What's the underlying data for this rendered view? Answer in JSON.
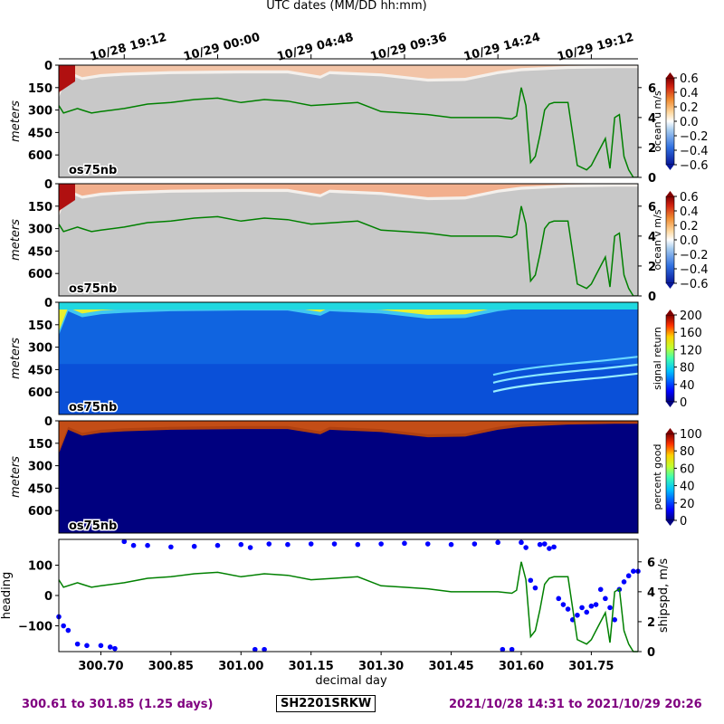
{
  "chart_data": {
    "type": "heatmap",
    "top_axis": {
      "label": "UTC dates (MM/DD hh:mm)",
      "ticks": [
        {
          "x": 300.75,
          "label": "10/28 19:12"
        },
        {
          "x": 300.95,
          "label": "10/29 00:00"
        },
        {
          "x": 301.15,
          "label": "10/29 04:48"
        },
        {
          "x": 301.35,
          "label": "10/29 09:36"
        },
        {
          "x": 301.55,
          "label": "10/29 14:24"
        },
        {
          "x": 301.75,
          "label": "10/29 19:12"
        }
      ]
    },
    "x_axis": {
      "label": "decimal day",
      "range": [
        300.61,
        301.85
      ],
      "ticks": [
        "300.70",
        "300.85",
        "301.00",
        "301.15",
        "301.30",
        "301.45",
        "301.60",
        "301.75"
      ]
    },
    "depth_axis": {
      "label": "meters",
      "range": [
        0,
        750
      ],
      "ticks": [
        "0",
        "150",
        "300",
        "450",
        "600"
      ]
    },
    "panel_tag": "os75nb",
    "panels": [
      {
        "name": "ocean u",
        "colorbar_label": "ocean u m/s",
        "colorbar_ticks": [
          "0.6",
          "0.4",
          "0.2",
          "0.0",
          "−0.2",
          "−0.4",
          "−0.6"
        ],
        "colormap": "blue-white-red",
        "overlay": "shipspd"
      },
      {
        "name": "ocean v",
        "colorbar_label": "ocean v m/s",
        "colorbar_ticks": [
          "0.6",
          "0.4",
          "0.2",
          "0.0",
          "−0.2",
          "−0.4",
          "−0.6"
        ],
        "colormap": "blue-white-red",
        "overlay": "shipspd"
      },
      {
        "name": "signal return",
        "colorbar_label": "signal return",
        "colorbar_ticks": [
          "200",
          "160",
          "120",
          "80",
          "40",
          "0"
        ],
        "colormap": "jet"
      },
      {
        "name": "percent good",
        "colorbar_label": "percent good",
        "colorbar_ticks": [
          "100",
          "80",
          "60",
          "40",
          "20",
          "0"
        ],
        "colormap": "jet"
      }
    ],
    "speed_axis_ticks": [
      "6",
      "4",
      "2",
      "0"
    ],
    "profile_depth_m": [
      [
        300.61,
        220
      ],
      [
        300.63,
        60
      ],
      [
        300.66,
        100
      ],
      [
        300.7,
        80
      ],
      [
        300.75,
        70
      ],
      [
        300.85,
        60
      ],
      [
        301.0,
        55
      ],
      [
        301.1,
        55
      ],
      [
        301.17,
        90
      ],
      [
        301.19,
        60
      ],
      [
        301.3,
        75
      ],
      [
        301.4,
        110
      ],
      [
        301.48,
        105
      ],
      [
        301.55,
        60
      ],
      [
        301.6,
        40
      ],
      [
        301.7,
        25
      ],
      [
        301.8,
        20
      ],
      [
        301.85,
        20
      ]
    ],
    "shipspd": {
      "ylabel": "shipspd, m/s",
      "ylim": [
        0,
        7.5
      ],
      "x": [
        300.61,
        300.62,
        300.65,
        300.66,
        300.68,
        300.7,
        300.75,
        300.8,
        300.85,
        300.9,
        300.95,
        301.0,
        301.05,
        301.1,
        301.15,
        301.2,
        301.25,
        301.3,
        301.35,
        301.4,
        301.45,
        301.5,
        301.55,
        301.58,
        301.59,
        301.6,
        301.61,
        301.62,
        301.63,
        301.64,
        301.65,
        301.66,
        301.67,
        301.68,
        301.7,
        301.72,
        301.74,
        301.75,
        301.76,
        301.78,
        301.79,
        301.8,
        301.81,
        301.82,
        301.83,
        301.84,
        301.85
      ],
      "y": [
        4.8,
        4.3,
        4.6,
        4.5,
        4.3,
        4.4,
        4.6,
        4.9,
        5.0,
        5.2,
        5.3,
        5.0,
        5.2,
        5.1,
        4.8,
        4.9,
        5.0,
        4.4,
        4.3,
        4.2,
        4.0,
        4.0,
        4.0,
        3.9,
        4.1,
        6.0,
        4.8,
        1.0,
        1.4,
        2.8,
        4.5,
        4.9,
        5.0,
        5.0,
        5.0,
        0.8,
        0.5,
        0.8,
        1.4,
        2.6,
        0.6,
        4.0,
        4.2,
        1.4,
        0.5,
        0.0,
        0.0
      ]
    },
    "heading": {
      "ylabel": "heading",
      "ylim": [
        -185,
        185
      ],
      "ticks": [
        "100",
        "0",
        "−100"
      ],
      "x": [
        300.61,
        300.62,
        300.63,
        300.65,
        300.67,
        300.7,
        300.72,
        300.73,
        300.75,
        300.77,
        300.8,
        300.85,
        300.9,
        300.95,
        301.0,
        301.02,
        301.03,
        301.05,
        301.06,
        301.1,
        301.15,
        301.2,
        301.25,
        301.3,
        301.35,
        301.4,
        301.45,
        301.5,
        301.55,
        301.56,
        301.58,
        301.6,
        301.61,
        301.62,
        301.63,
        301.64,
        301.65,
        301.66,
        301.67,
        301.68,
        301.69,
        301.7,
        301.71,
        301.72,
        301.73,
        301.74,
        301.75,
        301.76,
        301.77,
        301.78,
        301.79,
        301.8,
        301.81,
        301.82,
        301.83,
        301.84,
        301.85
      ],
      "y": [
        -70,
        -100,
        -115,
        -160,
        -165,
        -165,
        -170,
        -175,
        178,
        165,
        165,
        160,
        162,
        165,
        168,
        158,
        -178,
        -178,
        170,
        168,
        170,
        170,
        168,
        170,
        172,
        170,
        168,
        170,
        175,
        -178,
        -178,
        175,
        158,
        50,
        25,
        168,
        170,
        155,
        160,
        -10,
        -30,
        -45,
        -80,
        -65,
        -40,
        -55,
        -35,
        -30,
        20,
        -10,
        -40,
        -80,
        20,
        45,
        65,
        80,
        80
      ]
    },
    "footer": {
      "left": "300.61 to 301.85 (1.25 days)",
      "center": "SH2201SRKW",
      "right": "2021/10/28 14:31 to 2021/10/29 20:26"
    },
    "colors": {
      "nodata": "#c8c8c8",
      "shipspd": "#008000",
      "heading": "#0000ff",
      "footer": "#800080"
    }
  }
}
